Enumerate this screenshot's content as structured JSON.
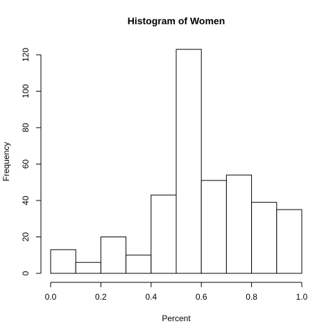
{
  "chart_data": {
    "type": "bar",
    "title": "Histogram of Women",
    "xlabel": "Percent",
    "ylabel": "Frequency",
    "bins": [
      {
        "start": 0.0,
        "end": 0.1,
        "count": 13
      },
      {
        "start": 0.1,
        "end": 0.2,
        "count": 6
      },
      {
        "start": 0.2,
        "end": 0.3,
        "count": 20
      },
      {
        "start": 0.3,
        "end": 0.4,
        "count": 10
      },
      {
        "start": 0.4,
        "end": 0.5,
        "count": 43
      },
      {
        "start": 0.5,
        "end": 0.6,
        "count": 123
      },
      {
        "start": 0.6,
        "end": 0.7,
        "count": 51
      },
      {
        "start": 0.7,
        "end": 0.8,
        "count": 54
      },
      {
        "start": 0.8,
        "end": 0.9,
        "count": 39
      },
      {
        "start": 0.9,
        "end": 1.0,
        "count": 35
      }
    ],
    "xlim": [
      0.0,
      1.0
    ],
    "ylim": [
      0,
      123
    ],
    "xticks": [
      "0.0",
      "0.2",
      "0.4",
      "0.6",
      "0.8",
      "1.0"
    ],
    "yticks": [
      "0",
      "20",
      "40",
      "60",
      "80",
      "100",
      "120"
    ],
    "grid": false,
    "bar_fill": "#ffffff",
    "bar_stroke": "#000000"
  }
}
